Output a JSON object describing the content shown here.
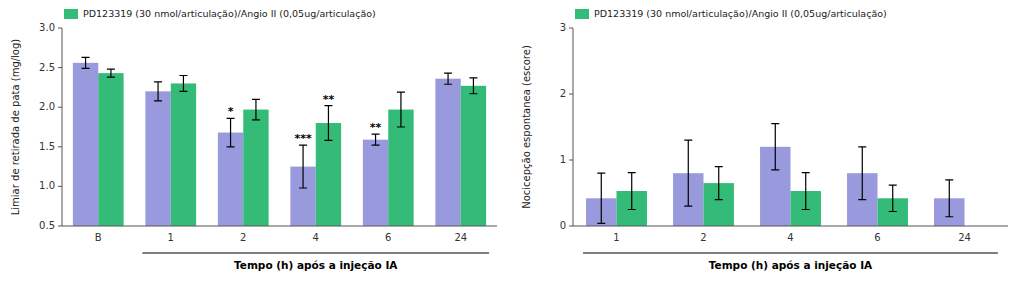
{
  "chart_data": [
    {
      "type": "bar",
      "ylabel": "Limiar de retirada de pata (mg/log)",
      "xlabel": "Tempo (h) após a injeção IA",
      "ylim": [
        0.5,
        3.0
      ],
      "yticks": [
        0.5,
        {
          "value": 1.0,
          "label": "1.0"
        },
        1.5,
        {
          "value": 2.0,
          "label": "2.0"
        },
        2.5,
        {
          "value": 3.0,
          "label": "3.0"
        }
      ],
      "categories": [
        "B",
        "1",
        "2",
        "4",
        "6",
        "24"
      ],
      "series": [
        {
          "color": "#9999dd",
          "values": [
            2.56,
            2.2,
            1.68,
            1.25,
            1.59,
            2.36
          ],
          "errors": [
            0.07,
            0.12,
            0.18,
            0.27,
            0.07,
            0.07
          ],
          "significance": [
            null,
            null,
            "*",
            "***",
            "**",
            null
          ]
        },
        {
          "name": "PD123319 (30 nmol/articulação)/Angio II (0,05ug/articulação)",
          "color": "#33bb77",
          "values": [
            2.43,
            2.3,
            1.97,
            1.8,
            1.97,
            2.27
          ],
          "errors": [
            0.05,
            0.1,
            0.13,
            0.22,
            0.22,
            0.1
          ],
          "significance": [
            null,
            null,
            null,
            "**",
            null,
            null
          ]
        }
      ],
      "legend": "upper left",
      "grid": false
    },
    {
      "type": "bar",
      "ylabel": "Nocicepção espontanea (escore)",
      "xlabel": "Tempo (h) após a injeção IA",
      "ylim": [
        0,
        3
      ],
      "yticks": [
        0,
        1,
        2,
        3
      ],
      "categories": [
        "1",
        "2",
        "4",
        "6",
        "24"
      ],
      "series": [
        {
          "color": "#9999dd",
          "values": [
            0.42,
            0.8,
            1.2,
            0.8,
            0.42
          ],
          "errors": [
            0.38,
            0.5,
            0.35,
            0.4,
            0.28
          ]
        },
        {
          "name": "PD123319 (30 nmol/articulação)/Angio II (0,05ug/articulação)",
          "color": "#33bb77",
          "values": [
            0.53,
            0.65,
            0.53,
            0.42,
            null
          ],
          "errors": [
            0.28,
            0.25,
            0.28,
            0.2,
            null
          ]
        }
      ],
      "legend": "upper left",
      "grid": false
    }
  ]
}
